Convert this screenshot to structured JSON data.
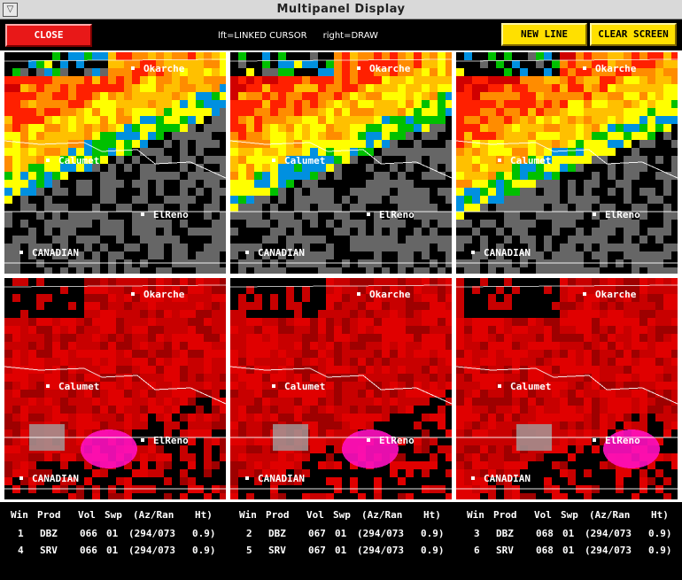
{
  "window": {
    "title": "Multipanel Display",
    "menu_icon": "▽"
  },
  "toolbar": {
    "close_label": "CLOSE",
    "hint_left": "lft=LINKED CURSOR",
    "hint_right": "right=DRAW",
    "new_line_label": "NEW LINE",
    "clear_screen_label": "CLEAR SCREEN",
    "colors": {
      "close": "#e81818",
      "action": "#ffe000"
    }
  },
  "cities": {
    "okarche": "Okarche",
    "calumet": "Calumet",
    "elreno": "ElReno",
    "canadian": "CANADIAN"
  },
  "panels": [
    {
      "win": "1",
      "prod": "DBZ"
    },
    {
      "win": "2",
      "prod": "DBZ"
    },
    {
      "win": "3",
      "prod": "DBZ"
    },
    {
      "win": "4",
      "prod": "SRV"
    },
    {
      "win": "5",
      "prod": "SRV"
    },
    {
      "win": "6",
      "prod": "SRV"
    }
  ],
  "info": {
    "headers": {
      "win": "Win",
      "prod": "Prod",
      "vol": "Vol",
      "swp": "Swp",
      "azran": "(Az/Ran",
      "ht": "Ht)"
    },
    "columns": [
      {
        "rows": [
          {
            "win": "1",
            "prod": "DBZ",
            "vol": "066",
            "swp": "01",
            "azran": "(294/073",
            "ht": "0.9)"
          },
          {
            "win": "4",
            "prod": "SRV",
            "vol": "066",
            "swp": "01",
            "azran": "(294/073",
            "ht": "0.9)"
          }
        ]
      },
      {
        "rows": [
          {
            "win": "2",
            "prod": "DBZ",
            "vol": "067",
            "swp": "01",
            "azran": "(294/073",
            "ht": "0.9)"
          },
          {
            "win": "5",
            "prod": "SRV",
            "vol": "067",
            "swp": "01",
            "azran": "(294/073",
            "ht": "0.9)"
          }
        ]
      },
      {
        "rows": [
          {
            "win": "3",
            "prod": "DBZ",
            "vol": "068",
            "swp": "01",
            "azran": "(294/073",
            "ht": "0.9)"
          },
          {
            "win": "6",
            "prod": "SRV",
            "vol": "068",
            "swp": "01",
            "azran": "(294/073",
            "ht": "0.9)"
          }
        ]
      }
    ]
  }
}
